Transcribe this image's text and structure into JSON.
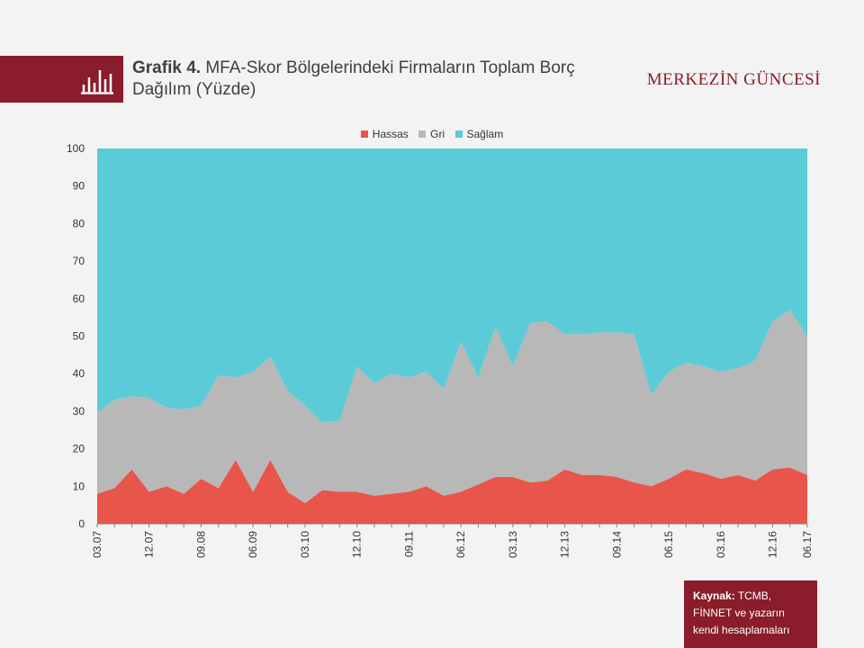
{
  "header": {
    "figure_label": "Grafik 4.",
    "title": "MFA-Skor Bölgelerindeki Firmaların Toplam Borç Dağılım (Yüzde)",
    "brand": "MERKEZİN GÜNCESİ"
  },
  "source": {
    "label": "Kaynak:",
    "text": "TCMB, FİNNET ve yazarın kendi hesaplamaları"
  },
  "colors": {
    "accent": "#8a1c2b",
    "hassas": "#e8554a",
    "gri": "#b8b8b8",
    "saglam": "#5bcbd8"
  },
  "chart_data": {
    "type": "area",
    "stacked": true,
    "xlabel": "",
    "ylabel": "",
    "ylim": [
      0,
      100
    ],
    "yticks": [
      0,
      10,
      20,
      30,
      40,
      50,
      60,
      70,
      80,
      90,
      100
    ],
    "xtick_labels": [
      "03.07",
      "12.07",
      "09.08",
      "06.09",
      "03.10",
      "12.10",
      "09.11",
      "06.12",
      "03.13",
      "12.13",
      "09.14",
      "06.15",
      "03.16",
      "12.16",
      "06.17"
    ],
    "xtick_positions": [
      0,
      3,
      6,
      9,
      12,
      15,
      18,
      21,
      24,
      27,
      30,
      33,
      36,
      39,
      41
    ],
    "legend_position": "top-center",
    "x": [
      "03.07",
      "06.07",
      "09.07",
      "12.07",
      "03.08",
      "06.08",
      "09.08",
      "12.08",
      "03.09",
      "06.09",
      "09.09",
      "12.09",
      "03.10",
      "06.10",
      "09.10",
      "12.10",
      "03.11",
      "06.11",
      "09.11",
      "12.11",
      "03.12",
      "06.12",
      "09.12",
      "12.12",
      "03.13",
      "06.13",
      "09.13",
      "12.13",
      "03.14",
      "06.14",
      "09.14",
      "12.14",
      "03.15",
      "06.15",
      "09.15",
      "12.15",
      "03.16",
      "06.16",
      "09.16",
      "12.16",
      "03.17",
      "06.17"
    ],
    "series": [
      {
        "name": "Hassas",
        "values": [
          8,
          9.5,
          14.5,
          8.5,
          10,
          8,
          12,
          9.5,
          17,
          8.5,
          17,
          8.5,
          5.5,
          9,
          8.5,
          8.5,
          7.5,
          8,
          8.5,
          10,
          7.5,
          8.5,
          10.5,
          12.5,
          12.5,
          11,
          11.5,
          14.5,
          13,
          13,
          12.5,
          11,
          10,
          12,
          14.5,
          13.5,
          12,
          13,
          11.5,
          14.5,
          15,
          13
        ]
      },
      {
        "name": "Gri",
        "values": [
          21.5,
          23.5,
          19.5,
          25,
          21,
          22.5,
          19.5,
          30,
          22,
          32,
          27.5,
          27,
          26,
          18,
          19,
          33.5,
          30,
          32,
          30.5,
          30.5,
          28.5,
          40,
          28.5,
          40,
          29.5,
          42.5,
          42.5,
          36,
          37.5,
          38,
          38.5,
          39.5,
          24.5,
          28.5,
          28.5,
          28.5,
          28.5,
          28.5,
          32,
          39.5,
          42,
          37
        ]
      },
      {
        "name": "Sağlam",
        "values": [
          70.5,
          67,
          66,
          66.5,
          69,
          69.5,
          68.5,
          60.5,
          61,
          59.5,
          55.5,
          64.5,
          68.5,
          73,
          72.5,
          58,
          62.5,
          60,
          61,
          59.5,
          64,
          51.5,
          61,
          47.5,
          58,
          46.5,
          46,
          49.5,
          49.5,
          49,
          49,
          49.5,
          65.5,
          59.5,
          57,
          58,
          59.5,
          58.5,
          56.5,
          46,
          43,
          50
        ]
      }
    ]
  }
}
